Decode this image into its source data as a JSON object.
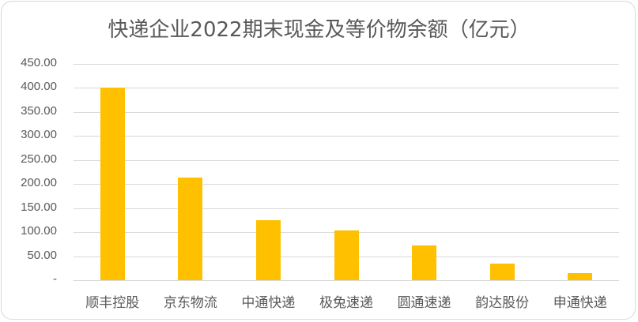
{
  "chart_data": {
    "type": "bar",
    "title": "快递企业2022期末现金及等价物余额（亿元）",
    "xlabel": "",
    "ylabel": "",
    "categories": [
      "顺丰控股",
      "京东物流",
      "中通快递",
      "极兔速递",
      "圆通速递",
      "韵达股份",
      "申通快递"
    ],
    "values": [
      401,
      214,
      125,
      104,
      73,
      35,
      15
    ],
    "ylim": [
      0,
      450
    ],
    "yticks": [
      0,
      50,
      100,
      150,
      200,
      250,
      300,
      350,
      400,
      450
    ],
    "ytick_labels": [
      "-",
      "50.00",
      "100.00",
      "150.00",
      "200.00",
      "250.00",
      "300.00",
      "350.00",
      "400.00",
      "450.00"
    ],
    "grid": true,
    "legend": null,
    "bar_color": "#FFC000"
  }
}
